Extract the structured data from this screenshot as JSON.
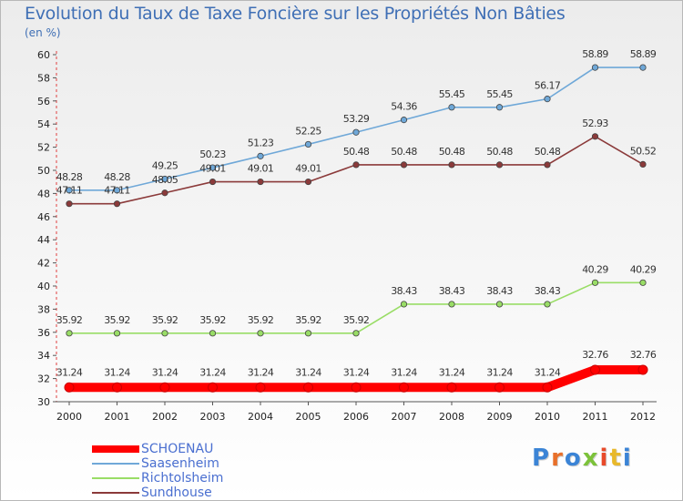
{
  "title": "Evolution du Taux de Taxe Foncière sur les Propriétés Non Bâties",
  "unit": "(en %)",
  "brand": {
    "text": "Proxiti",
    "colors": [
      "#3b84d6",
      "#e8702a",
      "#3b84d6",
      "#7cc23a",
      "#e84a2a",
      "#e8b82a",
      "#3b84d6"
    ]
  },
  "chart_data": {
    "type": "line",
    "title": "Evolution du Taux de Taxe Foncière sur les Propriétés Non Bâties",
    "ylabel": "(en %)",
    "xlabel": "",
    "x": [
      "2000",
      "2001",
      "2002",
      "2003",
      "2004",
      "2005",
      "2006",
      "2007",
      "2008",
      "2009",
      "2010",
      "2011",
      "2012"
    ],
    "ylim": [
      30,
      60
    ],
    "yticks": [
      "30",
      "32",
      "34",
      "36",
      "38",
      "40",
      "42",
      "44",
      "46",
      "48",
      "50",
      "52",
      "54",
      "56",
      "58",
      "60"
    ],
    "grid": false,
    "legend_position": "bottom-left",
    "series": [
      {
        "name": "SCHOENAU",
        "color": "#ff0000",
        "values": [
          31.24,
          31.24,
          31.24,
          31.24,
          31.24,
          31.24,
          31.24,
          31.24,
          31.24,
          31.24,
          31.24,
          32.76,
          32.76
        ],
        "labels": [
          "31.24",
          "31.24",
          "31.24",
          "31.24",
          "31.24",
          "31.24",
          "31.24",
          "31.24",
          "31.24",
          "31.24",
          "31.24",
          "32.76",
          "32.76"
        ]
      },
      {
        "name": "Saasenheim",
        "color": "#6fa8d8",
        "values": [
          48.28,
          48.28,
          49.25,
          50.23,
          51.23,
          52.25,
          53.29,
          54.36,
          55.45,
          55.45,
          56.17,
          58.89,
          58.89
        ],
        "labels": [
          "48.28",
          "48.28",
          "49.25",
          "50.23",
          "51.23",
          "52.25",
          "53.29",
          "54.36",
          "55.45",
          "55.45",
          "56.17",
          "58.89",
          "58.89"
        ]
      },
      {
        "name": "Richtolsheim",
        "color": "#99dd66",
        "values": [
          35.92,
          35.92,
          35.92,
          35.92,
          35.92,
          35.92,
          35.92,
          38.43,
          38.43,
          38.43,
          38.43,
          40.29,
          40.29
        ],
        "labels": [
          "35.92",
          "35.92",
          "35.92",
          "35.92",
          "35.92",
          "35.92",
          "35.92",
          "38.43",
          "38.43",
          "38.43",
          "38.43",
          "40.29",
          "40.29"
        ]
      },
      {
        "name": "Sundhouse",
        "color": "#8b3a3a",
        "values": [
          47.11,
          47.11,
          48.05,
          49.01,
          49.01,
          49.01,
          50.48,
          50.48,
          50.48,
          50.48,
          50.48,
          52.93,
          50.52
        ],
        "labels": [
          "47.11",
          "47.11",
          "48.05",
          "49.01",
          "49.01",
          "49.01",
          "50.48",
          "50.48",
          "50.48",
          "50.48",
          "50.48",
          "52.93",
          "50.52"
        ]
      }
    ]
  }
}
